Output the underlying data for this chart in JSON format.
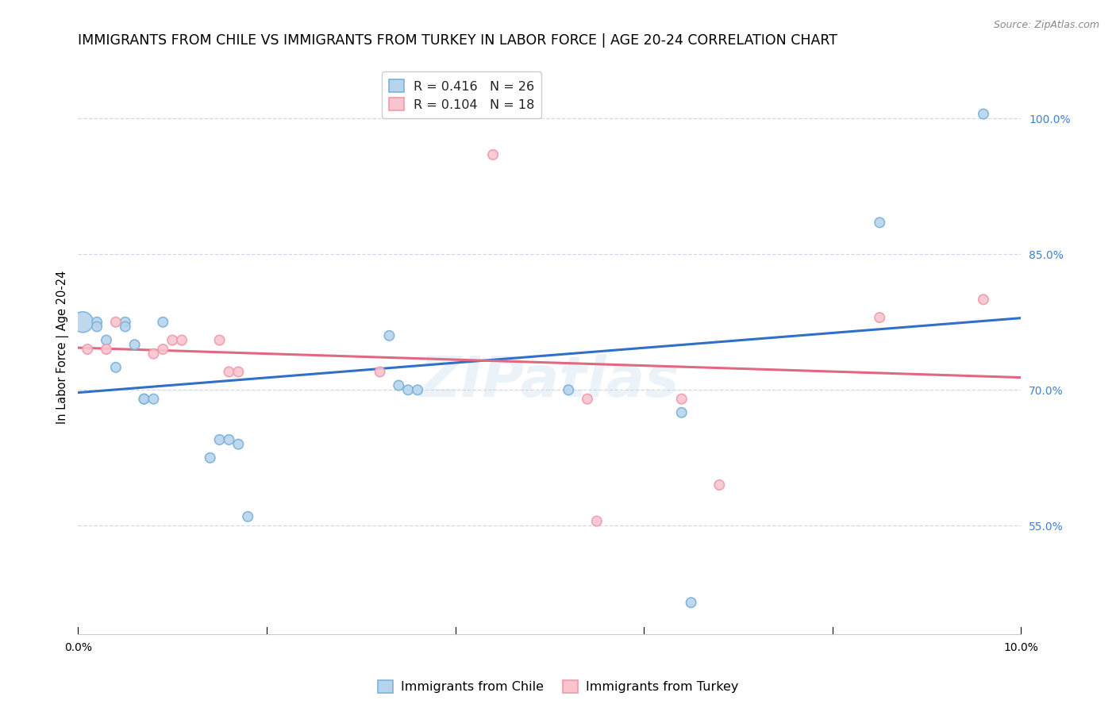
{
  "title": "IMMIGRANTS FROM CHILE VS IMMIGRANTS FROM TURKEY IN LABOR FORCE | AGE 20-24 CORRELATION CHART",
  "source": "Source: ZipAtlas.com",
  "ylabel": "In Labor Force | Age 20-24",
  "y_tick_labels": [
    "55.0%",
    "70.0%",
    "85.0%",
    "100.0%"
  ],
  "y_tick_values": [
    0.55,
    0.7,
    0.85,
    1.0
  ],
  "legend_label_chile": "Immigrants from Chile",
  "legend_label_turkey": "Immigrants from Turkey",
  "chile_color": "#7ab3d9",
  "chile_fill": "#b8d4ed",
  "turkey_color": "#f09aaa",
  "turkey_fill": "#f8c5cf",
  "line_chile_color": "#3070c8",
  "line_turkey_color": "#e06880",
  "ytick_color": "#4080d0",
  "background_color": "#ffffff",
  "grid_color": "#d0d8e8",
  "xlim": [
    0.0,
    0.1
  ],
  "ylim": [
    0.43,
    1.065
  ],
  "chile_x": [
    0.0005,
    0.002,
    0.002,
    0.003,
    0.004,
    0.005,
    0.005,
    0.006,
    0.007,
    0.007,
    0.008,
    0.009,
    0.014,
    0.015,
    0.016,
    0.017,
    0.018,
    0.033,
    0.034,
    0.035,
    0.036,
    0.052,
    0.064,
    0.065,
    0.085,
    0.096
  ],
  "chile_y": [
    0.775,
    0.775,
    0.77,
    0.755,
    0.725,
    0.775,
    0.77,
    0.75,
    0.69,
    0.69,
    0.69,
    0.775,
    0.625,
    0.645,
    0.645,
    0.64,
    0.56,
    0.76,
    0.705,
    0.7,
    0.7,
    0.7,
    0.675,
    0.465,
    0.885,
    1.005
  ],
  "chile_sizes": [
    350,
    80,
    80,
    80,
    80,
    80,
    80,
    80,
    80,
    80,
    80,
    80,
    80,
    80,
    80,
    80,
    80,
    80,
    80,
    80,
    80,
    80,
    80,
    80,
    80,
    80
  ],
  "turkey_x": [
    0.001,
    0.003,
    0.004,
    0.008,
    0.009,
    0.01,
    0.011,
    0.015,
    0.016,
    0.017,
    0.032,
    0.044,
    0.054,
    0.055,
    0.064,
    0.068,
    0.085,
    0.096
  ],
  "turkey_y": [
    0.745,
    0.745,
    0.775,
    0.74,
    0.745,
    0.755,
    0.755,
    0.755,
    0.72,
    0.72,
    0.72,
    0.96,
    0.69,
    0.555,
    0.69,
    0.595,
    0.78,
    0.8
  ],
  "turkey_sizes": [
    80,
    80,
    80,
    80,
    80,
    80,
    80,
    80,
    80,
    80,
    80,
    80,
    80,
    80,
    80,
    80,
    80,
    80
  ],
  "chile_R": 0.416,
  "turkey_R": 0.104,
  "watermark_text": "ZIPatlas",
  "title_fontsize": 12.5,
  "axis_label_fontsize": 10.5,
  "tick_fontsize": 10,
  "legend_fontsize": 11.5,
  "source_fontsize": 9
}
